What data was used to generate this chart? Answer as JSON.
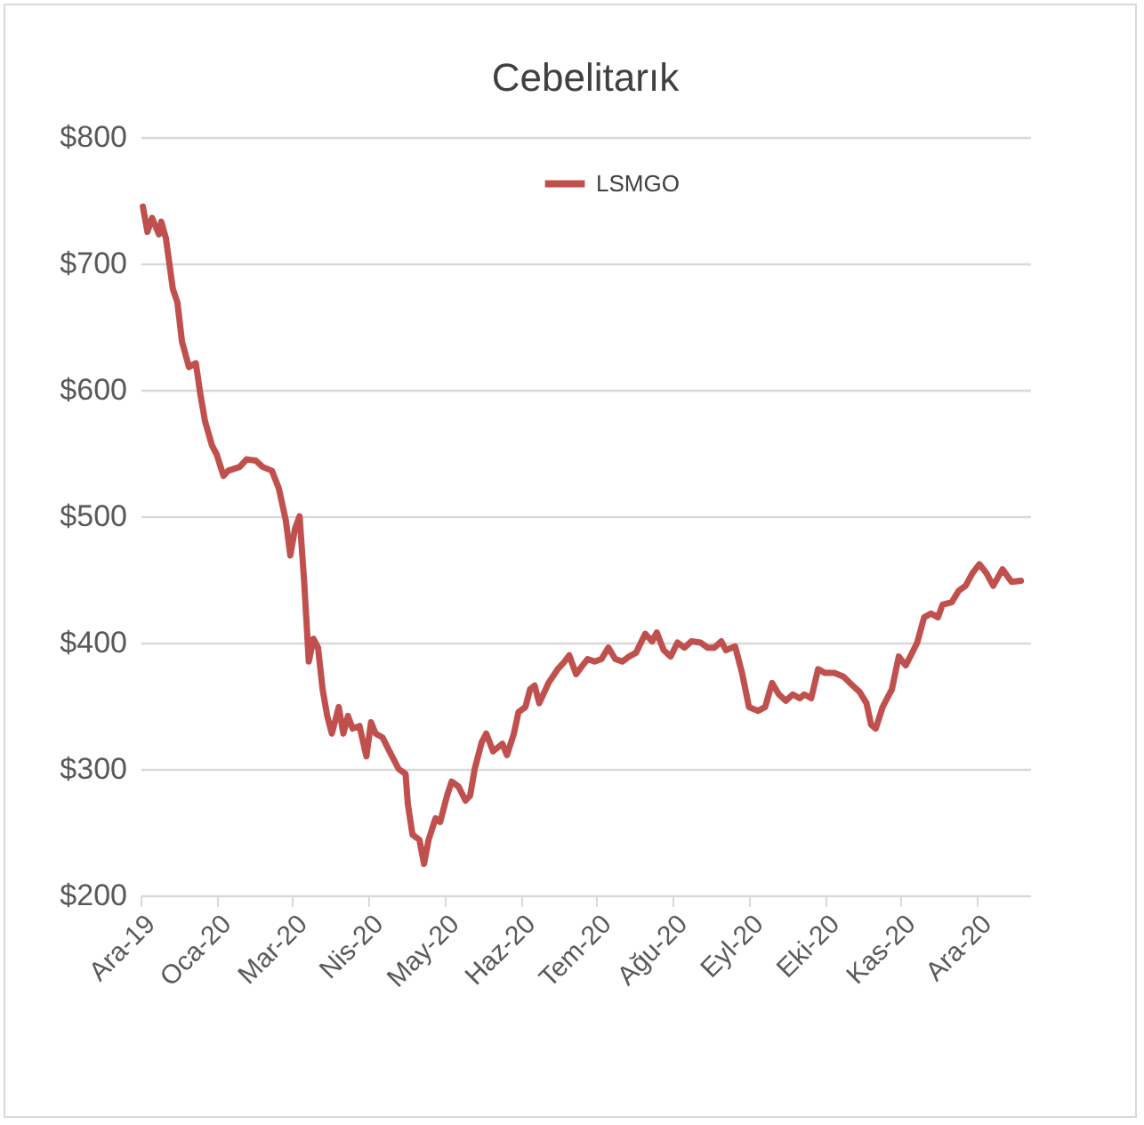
{
  "chart_data": {
    "type": "line",
    "title": "Cebelitarık",
    "x": [
      "2019-12-29",
      "2019-12-31",
      "2020-01-02",
      "2020-01-05",
      "2020-01-06",
      "2020-01-08",
      "2020-01-11",
      "2020-01-13",
      "2020-01-15",
      "2020-01-18",
      "2020-01-21",
      "2020-01-23",
      "2020-01-25",
      "2020-01-28",
      "2020-01-30",
      "2020-02-02",
      "2020-02-04",
      "2020-02-09",
      "2020-02-12",
      "2020-02-16",
      "2020-02-19",
      "2020-02-23",
      "2020-02-26",
      "2020-02-29",
      "2020-03-02",
      "2020-03-04",
      "2020-03-06",
      "2020-03-08",
      "2020-03-10",
      "2020-03-12",
      "2020-03-14",
      "2020-03-16",
      "2020-03-18",
      "2020-03-20",
      "2020-03-23",
      "2020-03-25",
      "2020-03-27",
      "2020-03-29",
      "2020-04-01",
      "2020-04-04",
      "2020-04-06",
      "2020-04-08",
      "2020-04-11",
      "2020-04-14",
      "2020-04-18",
      "2020-04-21",
      "2020-04-22",
      "2020-04-24",
      "2020-04-27",
      "2020-04-29",
      "2020-05-01",
      "2020-05-04",
      "2020-05-06",
      "2020-05-09",
      "2020-05-11",
      "2020-05-14",
      "2020-05-17",
      "2020-05-19",
      "2020-05-21",
      "2020-05-24",
      "2020-05-26",
      "2020-05-29",
      "2020-06-02",
      "2020-06-04",
      "2020-06-07",
      "2020-06-09",
      "2020-06-12",
      "2020-06-14",
      "2020-06-16",
      "2020-06-18",
      "2020-06-22",
      "2020-06-26",
      "2020-06-29",
      "2020-07-01",
      "2020-07-04",
      "2020-07-06",
      "2020-07-09",
      "2020-07-12",
      "2020-07-15",
      "2020-07-18",
      "2020-07-21",
      "2020-07-24",
      "2020-07-27",
      "2020-07-30",
      "2020-08-03",
      "2020-08-06",
      "2020-08-08",
      "2020-08-11",
      "2020-08-14",
      "2020-08-17",
      "2020-08-20",
      "2020-08-23",
      "2020-08-27",
      "2020-08-30",
      "2020-09-02",
      "2020-09-05",
      "2020-09-07",
      "2020-09-11",
      "2020-09-14",
      "2020-09-17",
      "2020-09-21",
      "2020-09-24",
      "2020-09-27",
      "2020-09-30",
      "2020-10-03",
      "2020-10-06",
      "2020-10-09",
      "2020-10-11",
      "2020-10-14",
      "2020-10-17",
      "2020-10-20",
      "2020-10-24",
      "2020-10-28",
      "2020-11-01",
      "2020-11-04",
      "2020-11-07",
      "2020-11-09",
      "2020-11-11",
      "2020-11-14",
      "2020-11-16",
      "2020-11-18",
      "2020-11-21",
      "2020-11-24",
      "2020-11-26",
      "2020-11-29",
      "2020-12-02",
      "2020-12-05",
      "2020-12-08",
      "2020-12-10",
      "2020-12-14",
      "2020-12-17",
      "2020-12-20",
      "2020-12-23",
      "2020-12-26",
      "2020-12-29",
      "2021-01-01",
      "2021-01-05",
      "2021-01-09",
      "2021-01-13"
    ],
    "series": [
      {
        "name": "LSMGO",
        "color": "#c0504d",
        "values": [
          745,
          725,
          736,
          723,
          733,
          720,
          680,
          669,
          638,
          618,
          621,
          596,
          575,
          556,
          549,
          532,
          536,
          539,
          545,
          544,
          539,
          536,
          522,
          497,
          469,
          490,
          500,
          448,
          385,
          403,
          396,
          363,
          342,
          328,
          349,
          328,
          342,
          332,
          334,
          310,
          337,
          328,
          325,
          314,
          300,
          296,
          272,
          248,
          244,
          225,
          244,
          261,
          258,
          279,
          290,
          286,
          275,
          279,
          300,
          321,
          328,
          314,
          320,
          311,
          328,
          345,
          349,
          363,
          366,
          352,
          368,
          379,
          385,
          390,
          375,
          380,
          387,
          385,
          387,
          396,
          387,
          385,
          389,
          392,
          407,
          401,
          408,
          394,
          389,
          400,
          396,
          401,
          400,
          396,
          396,
          401,
          394,
          397,
          376,
          349,
          346,
          349,
          368,
          359,
          354,
          359,
          356,
          359,
          356,
          379,
          376,
          376,
          373,
          366,
          361,
          352,
          335,
          332,
          349,
          356,
          363,
          389,
          382,
          389,
          400,
          420,
          423,
          420,
          430,
          432,
          441,
          445,
          455,
          462,
          455,
          445,
          458,
          448,
          449
        ]
      }
    ],
    "xlim": [
      "2019-12-28",
      "2021-01-17"
    ],
    "xticks": [
      {
        "value": "2019-12-28",
        "label": "Ara-19"
      },
      {
        "value": "2020-01-30",
        "label": "Oca-20"
      },
      {
        "value": "2020-03-03",
        "label": "Mar-20"
      },
      {
        "value": "2020-04-05",
        "label": "Nis-20"
      },
      {
        "value": "2020-05-08",
        "label": "May-20"
      },
      {
        "value": "2020-06-10",
        "label": "Haz-20"
      },
      {
        "value": "2020-07-13",
        "label": "Tem-20"
      },
      {
        "value": "2020-08-15",
        "label": "Ağu-20"
      },
      {
        "value": "2020-09-17",
        "label": "Eyl-20"
      },
      {
        "value": "2020-10-20",
        "label": "Eki-20"
      },
      {
        "value": "2020-11-22",
        "label": "Kas-20"
      },
      {
        "value": "2020-12-25",
        "label": "Ara-20"
      }
    ],
    "ylim": [
      200,
      800
    ],
    "yticks": [
      {
        "value": 200,
        "label": "$200"
      },
      {
        "value": 300,
        "label": "$300"
      },
      {
        "value": 400,
        "label": "$400"
      },
      {
        "value": 500,
        "label": "$500"
      },
      {
        "value": 600,
        "label": "$600"
      },
      {
        "value": 700,
        "label": "$700"
      },
      {
        "value": 800,
        "label": "$800"
      }
    ],
    "grid": "y",
    "legend": "top",
    "marker": "none",
    "line_style": "solid"
  }
}
